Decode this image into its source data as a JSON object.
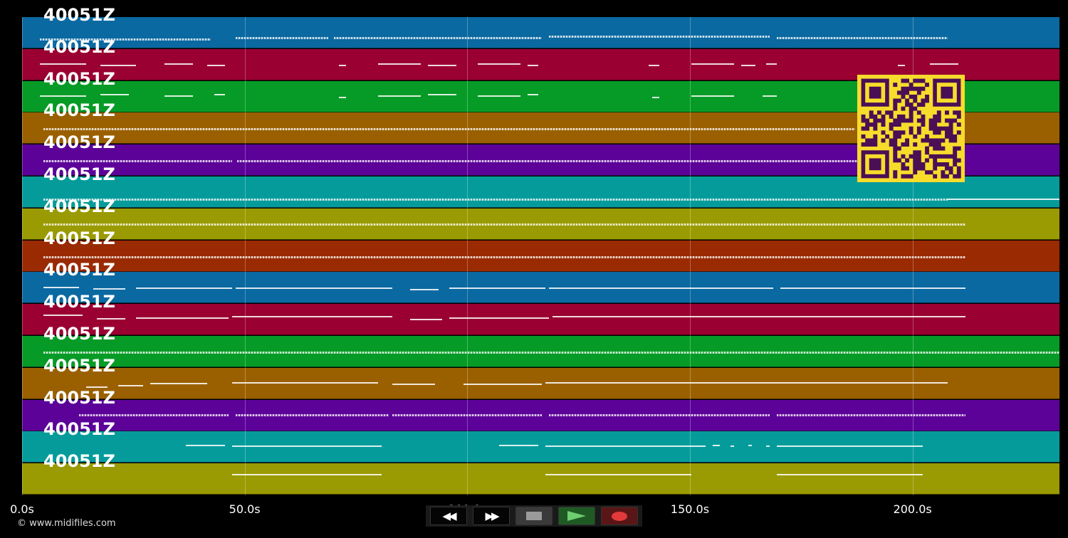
{
  "tracks": [
    {
      "label": "40051Z",
      "color": "#0b69a1"
    },
    {
      "label": "40051Z",
      "color": "#9a0032"
    },
    {
      "label": "40051Z",
      "color": "#069b26"
    },
    {
      "label": "40051Z",
      "color": "#9a6000"
    },
    {
      "label": "40051Z",
      "color": "#5c0299"
    },
    {
      "label": "40051Z",
      "color": "#069b9b"
    },
    {
      "label": "40051Z",
      "color": "#9a9a02"
    },
    {
      "label": "40051Z",
      "color": "#992a02"
    },
    {
      "label": "40051Z",
      "color": "#0b69a1"
    },
    {
      "label": "40051Z",
      "color": "#9a0032"
    },
    {
      "label": "40051Z",
      "color": "#069b26"
    },
    {
      "label": "40051Z",
      "color": "#9a6000"
    },
    {
      "label": "40051Z",
      "color": "#5c0299"
    },
    {
      "label": "40051Z",
      "color": "#069b9b"
    },
    {
      "label": "40051Z",
      "color": "#9a9a02"
    }
  ],
  "timeline": {
    "max_seconds": 233,
    "ticks": [
      {
        "value": 0,
        "label": "0.0s"
      },
      {
        "value": 50,
        "label": "50.0s"
      },
      {
        "value": 100,
        "label": "100.0s"
      },
      {
        "value": 150,
        "label": "150.0s"
      },
      {
        "value": 200,
        "label": "200.0s"
      }
    ]
  },
  "controls": {
    "rewind_icon": "rewind-icon",
    "fast_forward_icon": "fast-forward-icon",
    "stop_icon": "stop-icon",
    "play_icon": "play-icon",
    "record_icon": "record-icon"
  },
  "copyright": "© www.midifiles.com",
  "qr_code": {
    "color_bg": "#f7dc2c",
    "color_fg": "#4a0f55"
  }
}
